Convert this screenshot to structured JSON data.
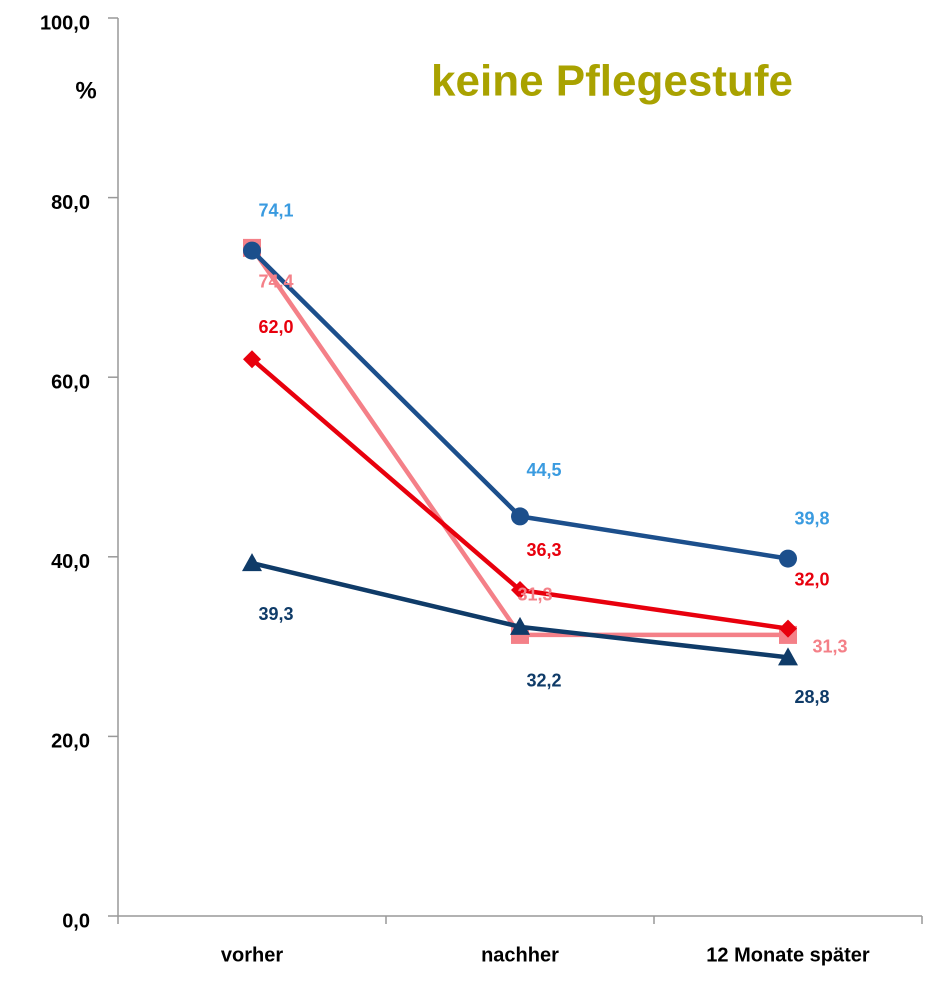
{
  "chart_data": {
    "type": "line",
    "title": "keine Pflegestufe",
    "title_color": "#a9a200",
    "ylabel": "%",
    "categories": [
      "vorher",
      "nachher",
      "12 Monate später"
    ],
    "ylim": [
      0,
      100
    ],
    "yticks": [
      {
        "value": 0,
        "label": "0,0"
      },
      {
        "value": 20,
        "label": "20,0"
      },
      {
        "value": 40,
        "label": "40,0"
      },
      {
        "value": 60,
        "label": "60,0"
      },
      {
        "value": 80,
        "label": "80,0"
      },
      {
        "value": 100,
        "label": "100,0"
      }
    ],
    "series": [
      {
        "color": "#f48088",
        "label_color": "#f48088",
        "marker": "square",
        "values": [
          74.4,
          31.3,
          31.3
        ],
        "value_labels": [
          "74,4",
          "31,3",
          "31,3"
        ]
      },
      {
        "color": "#e8000d",
        "label_color": "#e8000d",
        "marker": "diamond",
        "values": [
          62.0,
          36.3,
          32.0
        ],
        "value_labels": [
          "62,0",
          "36,3",
          "32,0"
        ]
      },
      {
        "color": "#0f3b68",
        "label_color": "#0f3b68",
        "marker": "triangle",
        "values": [
          39.3,
          32.2,
          28.8
        ],
        "value_labels": [
          "39,3",
          "32,2",
          "28,8"
        ]
      },
      {
        "color": "#1c4f8c",
        "label_color": "#3a9be0",
        "marker": "circle",
        "values": [
          74.1,
          44.5,
          39.8
        ],
        "value_labels": [
          "74,1",
          "44,5",
          "39,8"
        ]
      }
    ]
  }
}
